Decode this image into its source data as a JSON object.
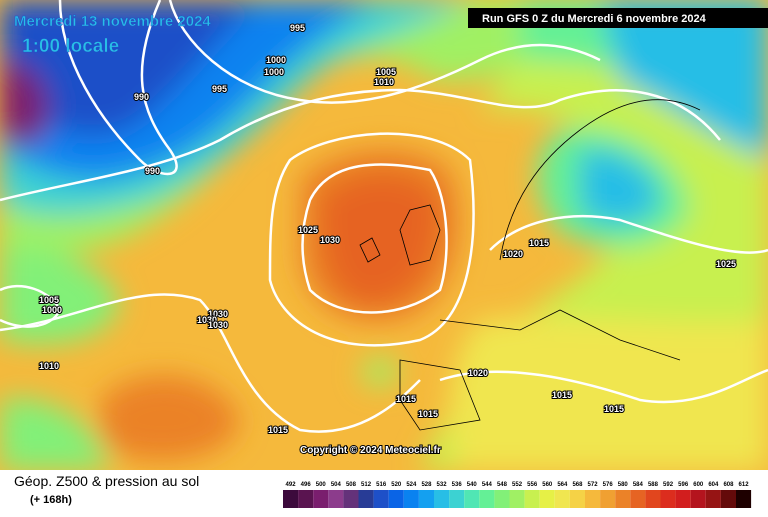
{
  "header": {
    "date": "Mercredi 13 novembre 2024",
    "time": "1:00 locale",
    "run": "Run GFS 0 Z du Mercredi 6 novembre 2024"
  },
  "copyright": "Copyright © 2024 Meteociel.fr",
  "footer": {
    "title": "Géop. Z500 & pression au sol",
    "lead": "(+ 168h)"
  },
  "isobars": [
    995,
    1000,
    1000,
    1005,
    1010,
    990,
    995,
    990,
    1025,
    1030,
    1015,
    1020,
    1025,
    1005,
    1000,
    1030,
    1030,
    1030,
    1010,
    1020,
    1015,
    1015,
    1015,
    1015,
    1015
  ],
  "colorbar": {
    "values": [
      492,
      496,
      500,
      504,
      508,
      512,
      516,
      520,
      524,
      528,
      532,
      536,
      540,
      544,
      548,
      552,
      556,
      560,
      564,
      568,
      572,
      576,
      580,
      584,
      588,
      592,
      596,
      600,
      604,
      608,
      612
    ],
    "colors": [
      "#3c0a3c",
      "#5a1450",
      "#7a1e6e",
      "#8c3c8c",
      "#64327a",
      "#283c96",
      "#1e50c8",
      "#0a64e6",
      "#0a82f0",
      "#14a0f0",
      "#28bee6",
      "#3cd2d2",
      "#50e6b4",
      "#64f096",
      "#82f078",
      "#a0f064",
      "#c8f050",
      "#e6f046",
      "#f0e650",
      "#f5d246",
      "#f5b93c",
      "#f0a032",
      "#eb8228",
      "#e66423",
      "#e1461e",
      "#dc2d1e",
      "#d21e1e",
      "#b4141e",
      "#961414",
      "#640a0a",
      "#1e0000"
    ]
  }
}
